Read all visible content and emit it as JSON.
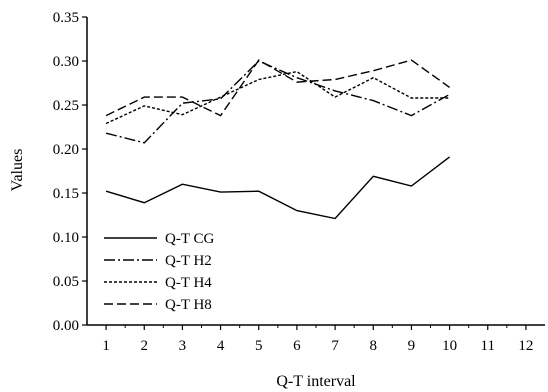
{
  "chart_data": {
    "type": "line",
    "title": "",
    "xlabel": "Q-T interval",
    "ylabel": "Values",
    "x": [
      1,
      2,
      3,
      4,
      5,
      6,
      7,
      8,
      9,
      10
    ],
    "x_ticks": [
      "1",
      "2",
      "3",
      "4",
      "5",
      "6",
      "7",
      "8",
      "9",
      "10",
      "11",
      "12"
    ],
    "y_ticks": [
      "0.00",
      "0.05",
      "0.10",
      "0.15",
      "0.20",
      "0.25",
      "0.30",
      "0.35"
    ],
    "xlim": [
      0.5,
      12.5
    ],
    "ylim": [
      0,
      0.35
    ],
    "grid": false,
    "legend_position": "lower-left",
    "series": [
      {
        "name": "Q-T CG",
        "dash": "solid",
        "values": [
          0.152,
          0.139,
          0.16,
          0.151,
          0.152,
          0.13,
          0.121,
          0.169,
          0.158,
          0.191
        ]
      },
      {
        "name": "Q-T H2",
        "dash": "dashdot",
        "values": [
          0.218,
          0.207,
          0.252,
          0.257,
          0.3,
          0.281,
          0.266,
          0.255,
          0.238,
          0.262
        ]
      },
      {
        "name": "Q-T H4",
        "dash": "dotted",
        "values": [
          0.229,
          0.249,
          0.239,
          0.259,
          0.279,
          0.288,
          0.259,
          0.281,
          0.258,
          0.258
        ]
      },
      {
        "name": "Q-T H8",
        "dash": "dashed",
        "values": [
          0.238,
          0.259,
          0.259,
          0.238,
          0.301,
          0.276,
          0.279,
          0.289,
          0.301,
          0.27
        ]
      }
    ]
  }
}
